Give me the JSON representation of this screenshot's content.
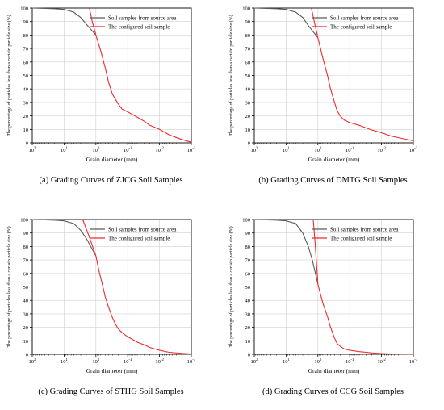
{
  "colors": {
    "source": "#5a5a5a",
    "configured": "#ee2a2a",
    "grid": "#d0d0d0"
  },
  "chart_data": [
    {
      "type": "line",
      "caption": "(a) Grading Curves of ZJCG Soil Samples",
      "xlabel": "Grain diameter (mm)",
      "ylabel": "The percentage of particles less than a certain particle size (%)",
      "x_scale": "log-reversed",
      "xlim": [
        100,
        0.001
      ],
      "ylim": [
        0,
        100
      ],
      "x_ticks": [
        {
          "v": 100,
          "base": "10",
          "exp": "2"
        },
        {
          "v": 10,
          "base": "10",
          "exp": "1"
        },
        {
          "v": 1,
          "base": "10",
          "exp": "0"
        },
        {
          "v": 0.1,
          "base": "10",
          "exp": "-1"
        },
        {
          "v": 0.01,
          "base": "10",
          "exp": "-2"
        },
        {
          "v": 0.001,
          "base": "10",
          "exp": "-3"
        }
      ],
      "y_ticks": [
        "0",
        "10",
        "20",
        "30",
        "40",
        "50",
        "60",
        "70",
        "80",
        "90",
        "100"
      ],
      "grid": true,
      "legend_position": "top-right",
      "series": [
        {
          "name": "Soil samples from source area",
          "color_key": "source",
          "x": [
            100,
            20,
            10,
            5,
            3,
            2,
            1
          ],
          "y": [
            100,
            99.5,
            99,
            97,
            93,
            88,
            80
          ]
        },
        {
          "name": "The configured soil sample",
          "color_key": "configured",
          "x": [
            1.6,
            1.3,
            1,
            0.7,
            0.5,
            0.4,
            0.3,
            0.2,
            0.15,
            0.1,
            0.07,
            0.05,
            0.03,
            0.02,
            0.01,
            0.005,
            0.003,
            0.002,
            0.001
          ],
          "y": [
            100,
            90,
            80,
            68,
            55,
            45,
            36,
            29,
            25,
            23,
            21,
            19,
            16,
            13,
            10,
            6,
            4,
            2.5,
            0.5
          ]
        }
      ]
    },
    {
      "type": "line",
      "caption": "(b) Grading Curves of DMTG Soil Samples",
      "xlabel": "Grain diameter (mm)",
      "ylabel": "The percentage of particles less than a certain particle size (%)",
      "x_scale": "log-reversed",
      "xlim": [
        100,
        0.001
      ],
      "ylim": [
        0,
        100
      ],
      "x_ticks": [
        {
          "v": 100,
          "base": "10",
          "exp": "2"
        },
        {
          "v": 10,
          "base": "10",
          "exp": "1"
        },
        {
          "v": 1,
          "base": "10",
          "exp": "0"
        },
        {
          "v": 0.1,
          "base": "10",
          "exp": "-1"
        },
        {
          "v": 0.01,
          "base": "10",
          "exp": "-2"
        },
        {
          "v": 0.001,
          "base": "10",
          "exp": "-3"
        }
      ],
      "y_ticks": [
        "0",
        "10",
        "20",
        "30",
        "40",
        "50",
        "60",
        "70",
        "80",
        "90",
        "100"
      ],
      "grid": true,
      "legend_position": "top-right",
      "series": [
        {
          "name": "Soil samples from source area",
          "color_key": "source",
          "x": [
            100,
            20,
            10,
            5,
            3,
            2,
            1
          ],
          "y": [
            100,
            99.5,
            99,
            97,
            93,
            87,
            78
          ]
        },
        {
          "name": "The configured soil sample",
          "color_key": "configured",
          "x": [
            1.6,
            1.3,
            1,
            0.7,
            0.5,
            0.4,
            0.3,
            0.25,
            0.2,
            0.15,
            0.1,
            0.07,
            0.05,
            0.03,
            0.02,
            0.01,
            0.005,
            0.002,
            0.001
          ],
          "y": [
            100,
            90,
            78,
            63,
            50,
            40,
            30,
            24,
            20,
            17,
            15,
            14,
            13,
            11,
            9.5,
            7.5,
            5,
            3,
            1.5
          ]
        }
      ]
    },
    {
      "type": "line",
      "caption": "(c) Grading Curves of STHG Soil Samples",
      "xlabel": "Grain diameter (mm)",
      "ylabel": "The percentage of particles less than a certain particle size (%)",
      "x_scale": "log-reversed",
      "xlim": [
        100,
        0.001
      ],
      "ylim": [
        0,
        100
      ],
      "x_ticks": [
        {
          "v": 100,
          "base": "10",
          "exp": "2"
        },
        {
          "v": 10,
          "base": "10",
          "exp": "1"
        },
        {
          "v": 1,
          "base": "10",
          "exp": "0"
        },
        {
          "v": 0.1,
          "base": "10",
          "exp": "-1"
        },
        {
          "v": 0.01,
          "base": "10",
          "exp": "-2"
        },
        {
          "v": 0.001,
          "base": "10",
          "exp": "-3"
        }
      ],
      "y_ticks": [
        "0",
        "10",
        "20",
        "30",
        "40",
        "50",
        "60",
        "70",
        "80",
        "90",
        "100"
      ],
      "grid": true,
      "legend_position": "top-right",
      "series": [
        {
          "name": "Soil samples from source area",
          "color_key": "source",
          "x": [
            100,
            20,
            10,
            5,
            3,
            2,
            1
          ],
          "y": [
            100,
            99.5,
            99,
            97,
            92,
            86,
            73
          ]
        },
        {
          "name": "The configured soil sample",
          "color_key": "configured",
          "x": [
            2.6,
            2,
            1.5,
            1,
            0.8,
            0.6,
            0.5,
            0.4,
            0.3,
            0.25,
            0.2,
            0.15,
            0.1,
            0.07,
            0.05,
            0.03,
            0.02,
            0.01,
            0.005,
            0.002,
            0.001
          ],
          "y": [
            100,
            93,
            85,
            73,
            62,
            50,
            42,
            35,
            27,
            23,
            19,
            16,
            13,
            11,
            9,
            7,
            5,
            3,
            1.5,
            0.7,
            0.3
          ]
        }
      ]
    },
    {
      "type": "line",
      "caption": "(d) Grading Curves of CCG Soil Samples",
      "xlabel": "Grain diameter (mm)",
      "ylabel": "The percentage of particles less than a certain particle size (%)",
      "x_scale": "log-reversed",
      "xlim": [
        100,
        0.001
      ],
      "ylim": [
        0,
        100
      ],
      "x_ticks": [
        {
          "v": 100,
          "base": "10",
          "exp": "2"
        },
        {
          "v": 10,
          "base": "10",
          "exp": "1"
        },
        {
          "v": 1,
          "base": "10",
          "exp": "0"
        },
        {
          "v": 0.1,
          "base": "10",
          "exp": "-1"
        },
        {
          "v": 0.01,
          "base": "10",
          "exp": "-2"
        },
        {
          "v": 0.001,
          "base": "10",
          "exp": "-3"
        }
      ],
      "y_ticks": [
        "0",
        "10",
        "20",
        "30",
        "40",
        "50",
        "60",
        "70",
        "80",
        "90",
        "100"
      ],
      "grid": true,
      "legend_position": "top-right",
      "series": [
        {
          "name": "Soil samples from source area",
          "color_key": "source",
          "x": [
            100,
            20,
            10,
            5,
            3,
            2,
            1.5,
            1
          ],
          "y": [
            100,
            99.5,
            99,
            97,
            90,
            80,
            70,
            52
          ]
        },
        {
          "name": "The configured soil sample",
          "color_key": "configured",
          "x": [
            1.4,
            1.2,
            1,
            0.7,
            0.5,
            0.4,
            0.3,
            0.25,
            0.2,
            0.15,
            0.1,
            0.05,
            0.03,
            0.02,
            0.01,
            0.005,
            0.001
          ],
          "y": [
            100,
            80,
            52,
            38,
            28,
            20,
            12,
            8,
            6,
            4,
            3,
            2,
            1.5,
            1,
            0.6,
            0.3,
            0.1
          ]
        }
      ]
    }
  ]
}
